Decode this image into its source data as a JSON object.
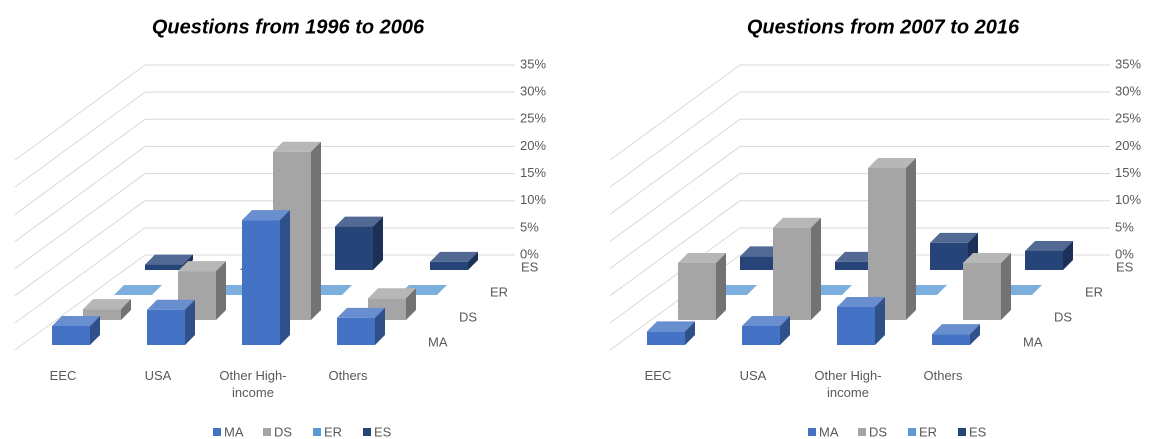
{
  "chart_data": [
    {
      "type": "bar3d",
      "title": "Questions from 1996 to 2006",
      "categories": [
        "EEC",
        "USA",
        "Other High-income",
        "Others"
      ],
      "series": [
        {
          "name": "MA",
          "color": "#4472c4",
          "values": [
            3.5,
            6.5,
            23,
            5
          ]
        },
        {
          "name": "DS",
          "color": "#a5a5a5",
          "values": [
            2,
            9,
            31,
            4
          ]
        },
        {
          "name": "ER",
          "color": "#5b9bd5",
          "values": [
            0,
            0,
            0,
            0
          ]
        },
        {
          "name": "ES",
          "color": "#264478",
          "values": [
            1,
            0,
            8,
            1.5
          ]
        }
      ],
      "ylim": [
        0,
        35
      ],
      "yticks": [
        {
          "value": 0,
          "label": "0%"
        },
        {
          "value": 5,
          "label": "5%"
        },
        {
          "value": 10,
          "label": "10%"
        },
        {
          "value": 15,
          "label": "15%"
        },
        {
          "value": 20,
          "label": "20%"
        },
        {
          "value": 25,
          "label": "25%"
        },
        {
          "value": 30,
          "label": "30%"
        },
        {
          "value": 35,
          "label": "35%"
        }
      ],
      "grid": true,
      "legend": "bottom"
    },
    {
      "type": "bar3d",
      "title": "Questions from 2007 to 2016",
      "categories": [
        "EEC",
        "USA",
        "Other High-income",
        "Others"
      ],
      "series": [
        {
          "name": "MA",
          "color": "#4472c4",
          "values": [
            2.5,
            3.5,
            7,
            2
          ]
        },
        {
          "name": "DS",
          "color": "#a5a5a5",
          "values": [
            10.5,
            17,
            28,
            10.5
          ]
        },
        {
          "name": "ER",
          "color": "#5b9bd5",
          "values": [
            0,
            0,
            0,
            0
          ]
        },
        {
          "name": "ES",
          "color": "#264478",
          "values": [
            2.5,
            1.5,
            5,
            3.5
          ]
        }
      ],
      "ylim": [
        0,
        35
      ],
      "yticks": [
        {
          "value": 0,
          "label": "0%"
        },
        {
          "value": 5,
          "label": "5%"
        },
        {
          "value": 10,
          "label": "10%"
        },
        {
          "value": 15,
          "label": "15%"
        },
        {
          "value": 20,
          "label": "20%"
        },
        {
          "value": 25,
          "label": "25%"
        },
        {
          "value": 30,
          "label": "30%"
        },
        {
          "value": 35,
          "label": "35%"
        }
      ],
      "grid": true,
      "legend": "bottom"
    }
  ]
}
